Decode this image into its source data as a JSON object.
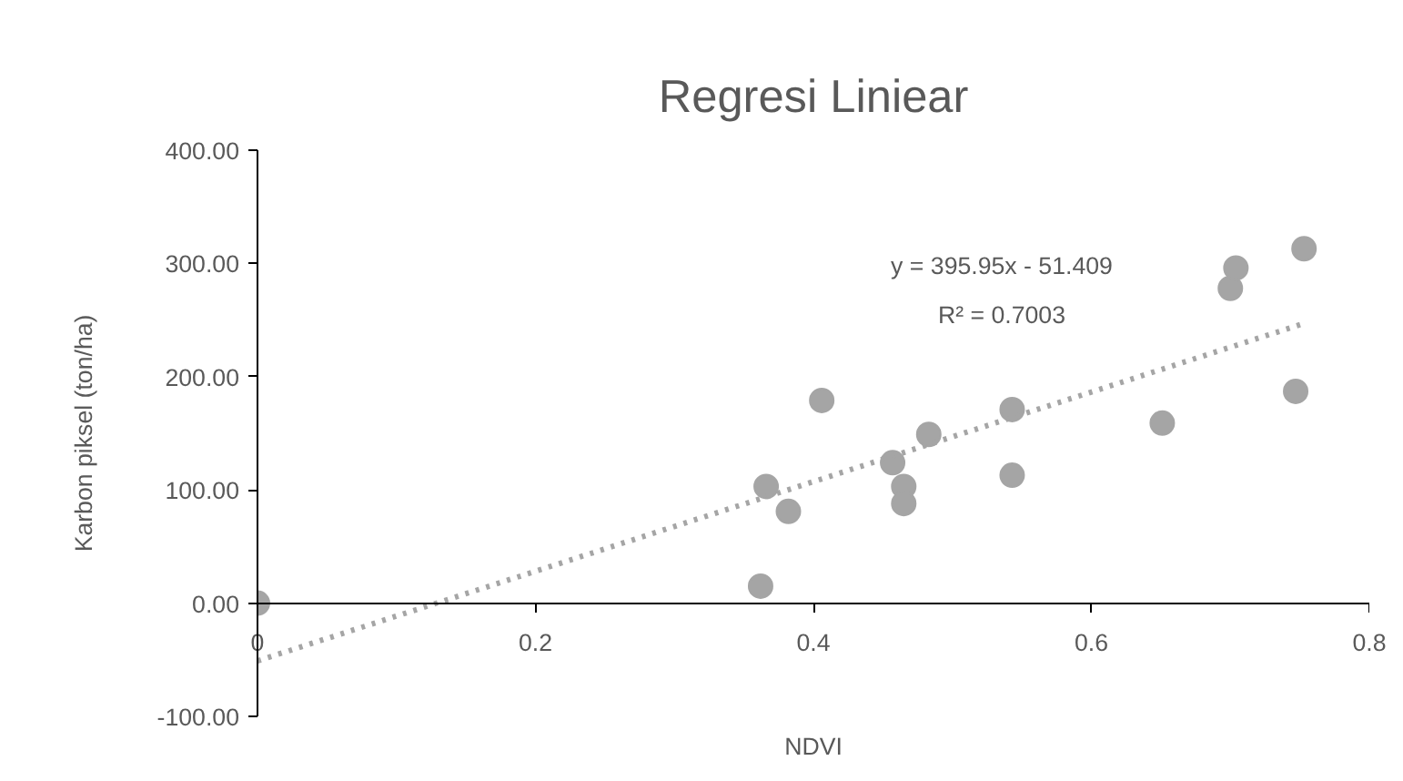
{
  "chart_data": {
    "type": "scatter",
    "title": "Regresi Liniear",
    "xlabel": "NDVI",
    "ylabel": "Karbon piksel (ton/ha)",
    "xlim": [
      0,
      0.8
    ],
    "xticks": [
      0,
      0.2,
      0.4,
      0.6,
      0.8
    ],
    "ylim": [
      -100,
      400
    ],
    "yticks": [
      {
        "value": -100,
        "label": "-100.00"
      },
      {
        "value": 0,
        "label": "0.00"
      },
      {
        "value": 100,
        "label": "100.00"
      },
      {
        "value": 200,
        "label": "200.00"
      },
      {
        "value": 300,
        "label": "300.00"
      },
      {
        "value": 400,
        "label": "400.00"
      }
    ],
    "series": [
      {
        "marker": "circle",
        "color": "#a5a5a5",
        "x": [
          0,
          0.362,
          0.366,
          0.382,
          0.406,
          0.457,
          0.465,
          0.465,
          0.483,
          0.543,
          0.543,
          0.651,
          0.7,
          0.704,
          0.747,
          0.753
        ],
        "values": [
          0,
          15,
          103,
          81,
          179,
          124,
          103,
          88,
          149,
          171,
          113,
          159,
          278,
          296,
          187,
          313
        ]
      },
      {
        "type": "line",
        "color": "#a5a5a5",
        "line_style": "dotted",
        "x": [
          0,
          0.753
        ],
        "values": [
          -51,
          247
        ]
      }
    ],
    "annotations": [
      "y = 395.95x - 51.409",
      "R² = 0.7003"
    ]
  }
}
